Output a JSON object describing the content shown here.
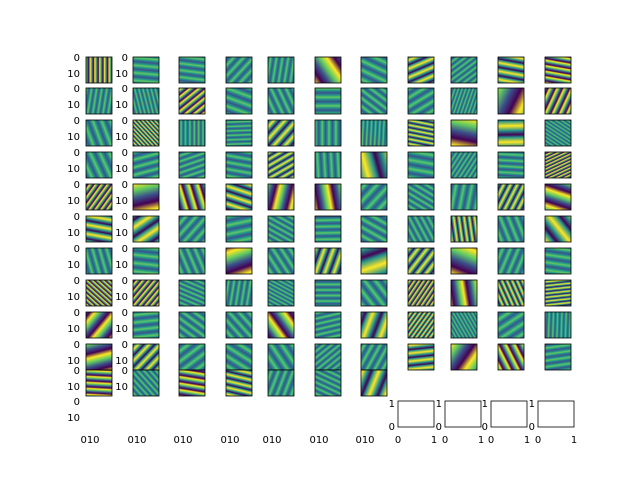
{
  "figure": {
    "grid_rows": 11,
    "grid_cols": 11,
    "filled_panels": 117,
    "colormap": [
      "#440154",
      "#3b528b",
      "#21918c",
      "#5ec962",
      "#fde725"
    ],
    "panel_edge_color": "#000000",
    "y_tick_labels": [
      "0",
      "10"
    ],
    "x_tick_labels": [
      "0",
      "10"
    ],
    "empty_axis_ticks": [
      "0",
      "1"
    ]
  }
}
